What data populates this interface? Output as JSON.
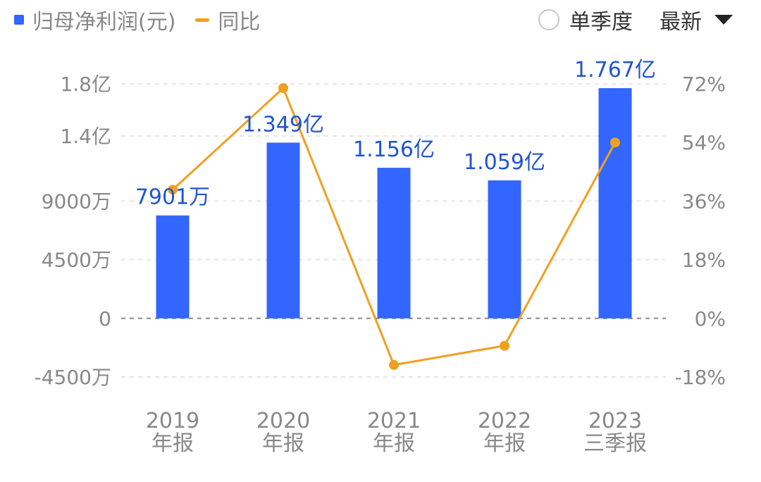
{
  "legend": {
    "bar_label": "归母净利润(元)",
    "line_label": "同比"
  },
  "controls": {
    "season_label": "单季度",
    "latest_label": "最新"
  },
  "colors": {
    "bar": "#3366ff",
    "line": "#f0a020",
    "bar_label": "#2255cc",
    "axis_text": "#888888"
  },
  "chart_data": {
    "type": "bar",
    "categories": [
      [
        "2019",
        "年报"
      ],
      [
        "2020",
        "年报"
      ],
      [
        "2021",
        "年报"
      ],
      [
        "2022",
        "年报"
      ],
      [
        "2023",
        "三季报"
      ]
    ],
    "series": [
      {
        "name": "归母净利润(元)",
        "type": "bar",
        "axis": "left",
        "values": [
          79010000,
          134900000,
          115600000,
          105900000,
          176700000
        ],
        "labels": [
          "7901万",
          "1.349亿",
          "1.156亿",
          "1.059亿",
          "1.767亿"
        ]
      },
      {
        "name": "同比",
        "type": "line",
        "axis": "right",
        "values": [
          39.5,
          70.7,
          -14.3,
          -8.4,
          54.0
        ]
      }
    ],
    "y_left": {
      "ticks": [
        180000000,
        140000000,
        90000000,
        45000000,
        0,
        -45000000
      ],
      "tick_labels": [
        "1.8亿",
        "1.4亿",
        "9000万",
        "4500万",
        "0",
        "-4500万"
      ],
      "range": [
        -45000000,
        180000000
      ]
    },
    "y_right": {
      "ticks": [
        72,
        54,
        36,
        18,
        0,
        -18
      ],
      "tick_labels": [
        "72%",
        "54%",
        "36%",
        "18%",
        "0%",
        "-18%"
      ],
      "range": [
        -18,
        72
      ]
    },
    "grid": true
  }
}
